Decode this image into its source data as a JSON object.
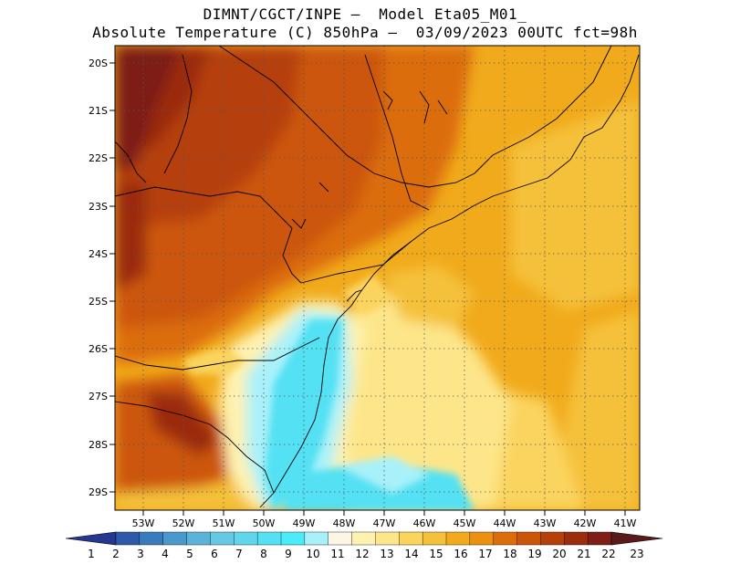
{
  "header": {
    "line1": "DIMNT/CGCT/INPE –  Model Eta05_M01_",
    "line2": "Absolute Temperature (C) 850hPa –  03/09/2023 00UTC fct=98h"
  },
  "map": {
    "lat_range": [
      -29.4,
      -19.8
    ],
    "lon_range": [
      -53.6,
      -40.6
    ],
    "lat_ticks": [
      "20S",
      "21S",
      "22S",
      "23S",
      "24S",
      "25S",
      "26S",
      "27S",
      "28S",
      "29S"
    ],
    "lon_ticks": [
      "53W",
      "52W",
      "51W",
      "50W",
      "49W",
      "48W",
      "47W",
      "46W",
      "45W",
      "44W",
      "43W",
      "42W",
      "41W"
    ],
    "grid": "dotted"
  },
  "colorbar": {
    "labels": [
      "1",
      "2",
      "3",
      "4",
      "5",
      "6",
      "7",
      "8",
      "9",
      "10",
      "11",
      "12",
      "13",
      "14",
      "15",
      "16",
      "17",
      "18",
      "19",
      "20",
      "21",
      "22",
      "23"
    ],
    "colors": [
      "#25378f",
      "#2c5aa8",
      "#3a7cbb",
      "#4a98cc",
      "#5cb3d9",
      "#66c8e4",
      "#5fd6ec",
      "#53e1f3",
      "#49ecf8",
      "#a9f1fa",
      "#fdf6e4",
      "#fff2b0",
      "#fde68a",
      "#fbd45e",
      "#f5c13a",
      "#f1aa1b",
      "#ea920f",
      "#dc6d0a",
      "#cc5608",
      "#b64009",
      "#9b2c0c",
      "#7e1e14",
      "#5b1a1a"
    ]
  }
}
